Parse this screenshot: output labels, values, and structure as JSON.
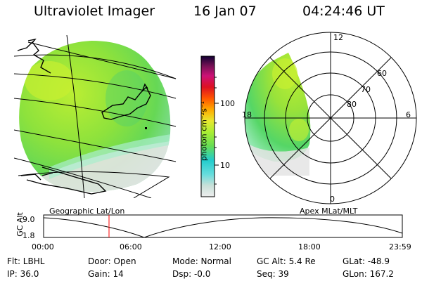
{
  "header": {
    "instrument": "Ultraviolet Imager",
    "date": "16 Jan 07",
    "time": "04:24:46 UT"
  },
  "colorbar": {
    "unit_label": "photon cm⁻²s⁻¹",
    "ticks": [
      "100",
      "10"
    ],
    "scale": "log",
    "colors": [
      "#eeeeee",
      "#c8e0d8",
      "#66dddd",
      "#22cccc",
      "#66dd55",
      "#aaee33",
      "#e8e830",
      "#ffaa00",
      "#ff5500",
      "#dd1122",
      "#cc1177",
      "#771155",
      "#110033"
    ]
  },
  "geographic_map": {
    "label": "Geographic Lat/Lon",
    "land_color": "#000000",
    "glow_colors": {
      "strong": "#bbee33",
      "mid": "#77dd44",
      "weak": "#aaeecc",
      "edge": "#e8e8e8"
    }
  },
  "polar_plot": {
    "label": "Apex MLat/MLT",
    "mlt_labels": {
      "top": "12",
      "right": "6",
      "bottom": "0",
      "left": "18"
    },
    "lat_labels": [
      "60",
      "70",
      "80"
    ]
  },
  "altitude_plot": {
    "ylabel": "GC Alt",
    "yticks": [
      "9.0",
      "1.8"
    ],
    "xticks": [
      "00:00",
      "06:00",
      "12:00",
      "18:00",
      "23:59"
    ],
    "marker_color": "#ff0000",
    "marker_time": "04:24"
  },
  "info": {
    "flt": "Flt: LBHL",
    "ip": "IP: 36.0",
    "door": "Door: Open",
    "gain": "Gain: 14",
    "mode": "Mode: Normal",
    "dsp": "Dsp:    -0.0",
    "gc_alt": "GC Alt: 5.4 Re",
    "seq": "Seq: 39",
    "glat": "GLat: -48.9",
    "glon": "GLon: 167.2"
  }
}
